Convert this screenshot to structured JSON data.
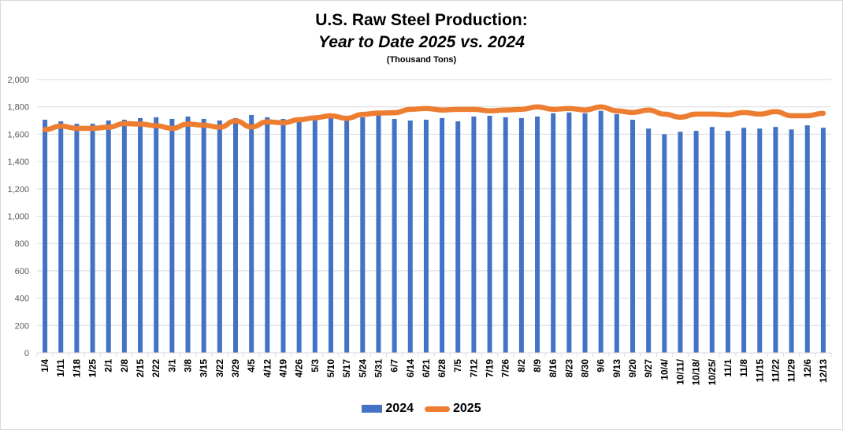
{
  "chart_data": {
    "type": "bar",
    "title": "U.S. Raw Steel Production:",
    "subtitle": "Year to Date 2025 vs. 2024",
    "unit_note": "(Thousand Tons)",
    "xlabel": "",
    "ylabel": "",
    "ylim": [
      0,
      2000
    ],
    "yticks": [
      0,
      200,
      400,
      600,
      800,
      1000,
      1200,
      1400,
      1600,
      1800,
      2000
    ],
    "ytick_labels": [
      "0",
      "200",
      "400",
      "600",
      "800",
      "1,000",
      "1,200",
      "1,400",
      "1,600",
      "1,800",
      "2,000"
    ],
    "grid": true,
    "legend_position": "bottom",
    "categories": [
      "1/4",
      "1/11",
      "1/18",
      "1/25",
      "2/1",
      "2/8",
      "2/15",
      "2/22",
      "3/1",
      "3/8",
      "3/15",
      "3/22",
      "3/29",
      "4/5",
      "4/12",
      "4/19",
      "4/26",
      "5/3",
      "5/10",
      "5/17",
      "5/24",
      "5/31",
      "6/7",
      "6/14",
      "6/21",
      "6/28",
      "7/5",
      "7/12",
      "7/19",
      "7/26",
      "8/2",
      "8/9",
      "8/16",
      "8/23",
      "8/30",
      "9/6",
      "9/13",
      "9/20",
      "9/27",
      "10/4/",
      "10/11/",
      "10/18/",
      "10/25/",
      "11/1",
      "11/8",
      "11/15",
      "11/22",
      "11/29",
      "12/6",
      "12/13"
    ],
    "series": [
      {
        "name": "2024",
        "kind": "bar",
        "color": "#4472c4",
        "values": [
          1706,
          1694,
          1676,
          1676,
          1700,
          1706,
          1718,
          1724,
          1712,
          1729,
          1712,
          1700,
          1718,
          1741,
          1724,
          1712,
          1690,
          1706,
          1718,
          1700,
          1724,
          1741,
          1712,
          1700,
          1706,
          1718,
          1694,
          1729,
          1735,
          1724,
          1718,
          1729,
          1753,
          1759,
          1753,
          1771,
          1747,
          1706,
          1641,
          1600,
          1618,
          1624,
          1653,
          1624,
          1647,
          1641,
          1653,
          1635,
          1665,
          1647
        ]
      },
      {
        "name": "2025",
        "kind": "line",
        "color": "#ed7d31",
        "values": [
          1634,
          1659,
          1643,
          1643,
          1651,
          1678,
          1674,
          1662,
          1643,
          1674,
          1666,
          1651,
          1697,
          1653,
          1690,
          1684,
          1706,
          1720,
          1735,
          1716,
          1745,
          1755,
          1757,
          1782,
          1788,
          1777,
          1782,
          1782,
          1771,
          1777,
          1782,
          1800,
          1782,
          1788,
          1777,
          1800,
          1771,
          1759,
          1777,
          1747,
          1724,
          1747,
          1747,
          1741,
          1759,
          1747,
          1765,
          1735,
          1735,
          1753
        ]
      }
    ]
  }
}
